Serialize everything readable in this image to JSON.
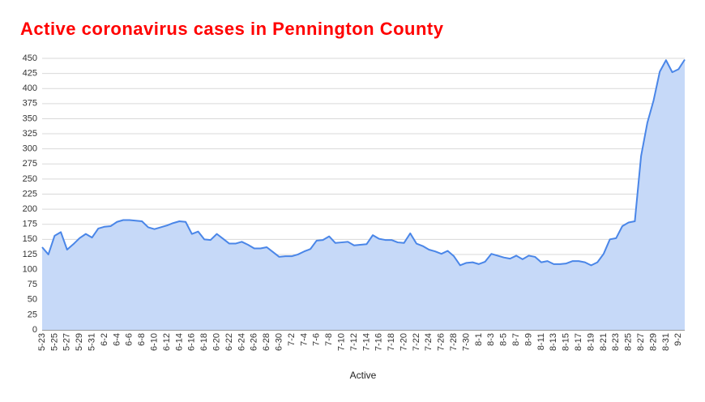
{
  "chart_data": {
    "type": "area",
    "title": "Active coronavirus cases in Pennington County",
    "x_label": "Active",
    "categories": [
      "5-23",
      null,
      "5-25",
      null,
      "5-27",
      null,
      "5-29",
      null,
      "5-31",
      null,
      "6-2",
      null,
      "6-4",
      null,
      "6-6",
      null,
      "6-8",
      null,
      "6-10",
      null,
      "6-12",
      null,
      "6-14",
      null,
      "6-16",
      null,
      "6-18",
      null,
      "6-20",
      null,
      "6-22",
      null,
      "6-24",
      null,
      "6-26",
      null,
      "6-28",
      null,
      "6-30",
      null,
      "7-2",
      null,
      "7-4",
      null,
      "7-6",
      null,
      "7-8",
      null,
      "7-10",
      null,
      "7-12",
      null,
      "7-14",
      null,
      "7-16",
      null,
      "7-18",
      null,
      "7-20",
      null,
      "7-22",
      null,
      "7-24",
      null,
      "7-26",
      null,
      "7-28",
      null,
      "7-30",
      null,
      "8-1",
      null,
      "8-3",
      null,
      "8-5",
      null,
      "8-7",
      null,
      "8-9",
      null,
      "8-11",
      null,
      "8-13",
      null,
      "8-15",
      null,
      "8-17",
      null,
      "8-19",
      null,
      "8-21",
      null,
      "8-23",
      null,
      "8-25",
      null,
      "8-27",
      null,
      "8-29",
      null,
      "8-31",
      null,
      "9-2",
      null
    ],
    "series": [
      {
        "name": "Active",
        "color": "#4a86e8",
        "values": [
          137,
          125,
          156,
          162,
          133,
          142,
          152,
          159,
          153,
          168,
          171,
          172,
          179,
          182,
          182,
          181,
          180,
          170,
          167,
          170,
          173,
          177,
          180,
          179,
          159,
          163,
          150,
          149,
          159,
          151,
          143,
          143,
          146,
          141,
          135,
          135,
          137,
          129,
          121,
          122,
          122,
          125,
          130,
          134,
          148,
          149,
          155,
          144,
          145,
          146,
          140,
          141,
          142,
          157,
          151,
          149,
          149,
          145,
          144,
          160,
          143,
          139,
          133,
          130,
          126,
          131,
          122,
          107,
          111,
          112,
          109,
          113,
          126,
          123,
          120,
          118,
          123,
          117,
          123,
          121,
          112,
          114,
          109,
          109,
          110,
          114,
          114,
          112,
          107,
          112,
          126,
          150,
          152,
          172,
          178,
          180,
          288,
          343,
          380,
          428,
          447,
          427,
          432,
          448
        ]
      }
    ],
    "fill_color": "#c6d9f8",
    "ylim": [
      0,
      450
    ],
    "yticks": [
      0,
      25,
      50,
      75,
      100,
      125,
      150,
      175,
      200,
      225,
      250,
      275,
      300,
      325,
      350,
      375,
      400,
      425,
      450
    ],
    "grid": true
  }
}
